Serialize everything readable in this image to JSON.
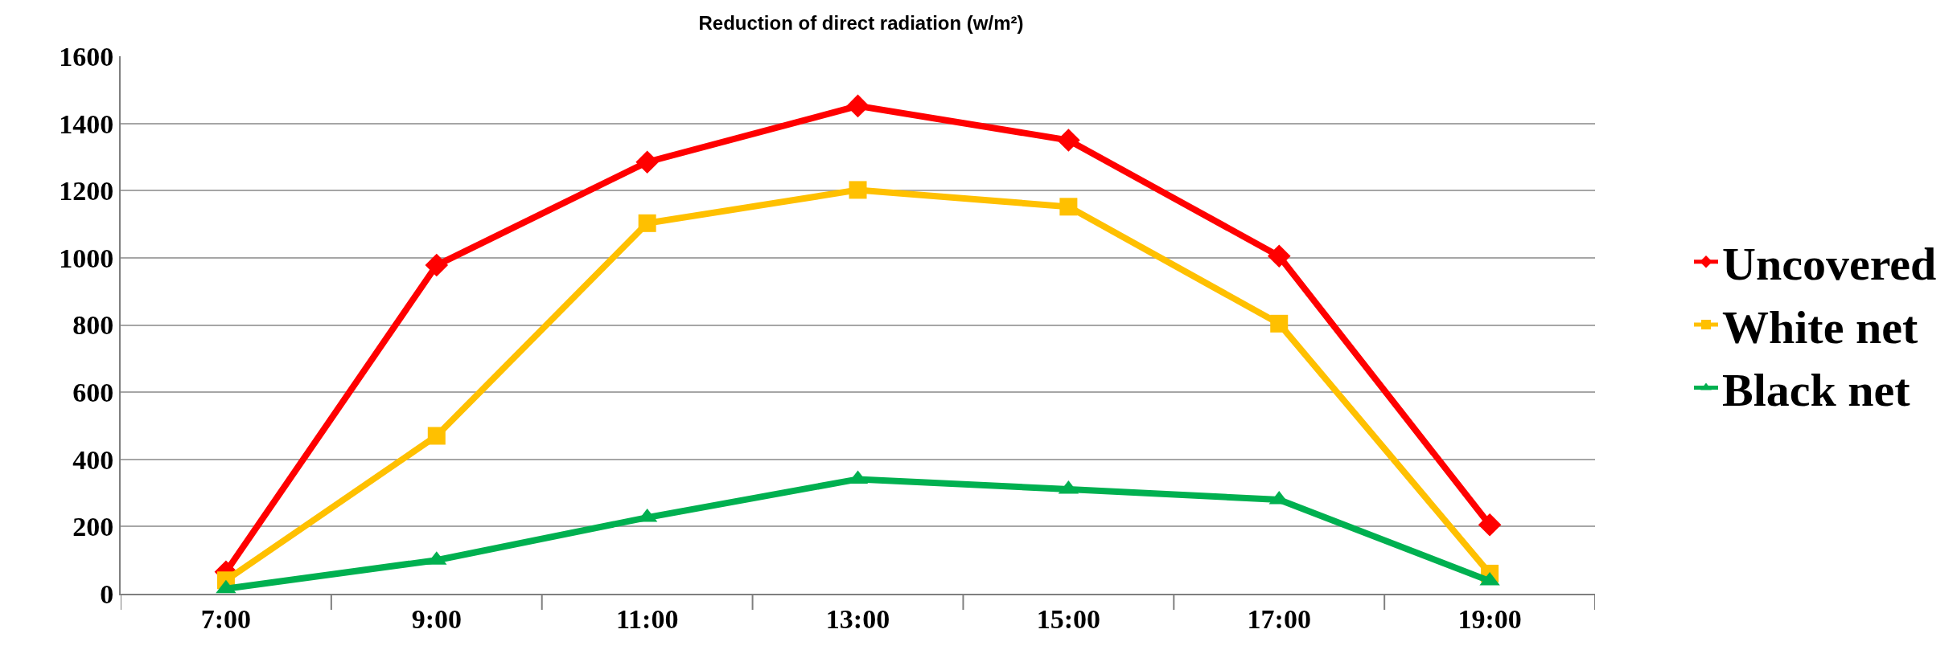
{
  "chart_data": {
    "type": "line",
    "title": "Reduction of direct radiation (w/m²)",
    "categories": [
      "7:00",
      "9:00",
      "11:00",
      "13:00",
      "15:00",
      "17:00",
      "19:00"
    ],
    "series": [
      {
        "name": "Uncovered",
        "color": "#ff0000",
        "marker": "diamond",
        "values": [
          65,
          978,
          1285,
          1452,
          1350,
          1005,
          205
        ]
      },
      {
        "name": "White net",
        "color": "#ffc000",
        "marker": "square",
        "values": [
          40,
          470,
          1103,
          1202,
          1152,
          804,
          60
        ]
      },
      {
        "name": "Black net",
        "color": "#00b050",
        "marker": "triangle",
        "values": [
          15,
          100,
          227,
          341,
          311,
          280,
          38
        ]
      }
    ],
    "ylim": [
      0,
      1600
    ],
    "yticks": [
      0,
      200,
      400,
      600,
      800,
      1000,
      1200,
      1400,
      1600
    ],
    "grid": "y",
    "legend": "right",
    "line_style": "solid"
  }
}
